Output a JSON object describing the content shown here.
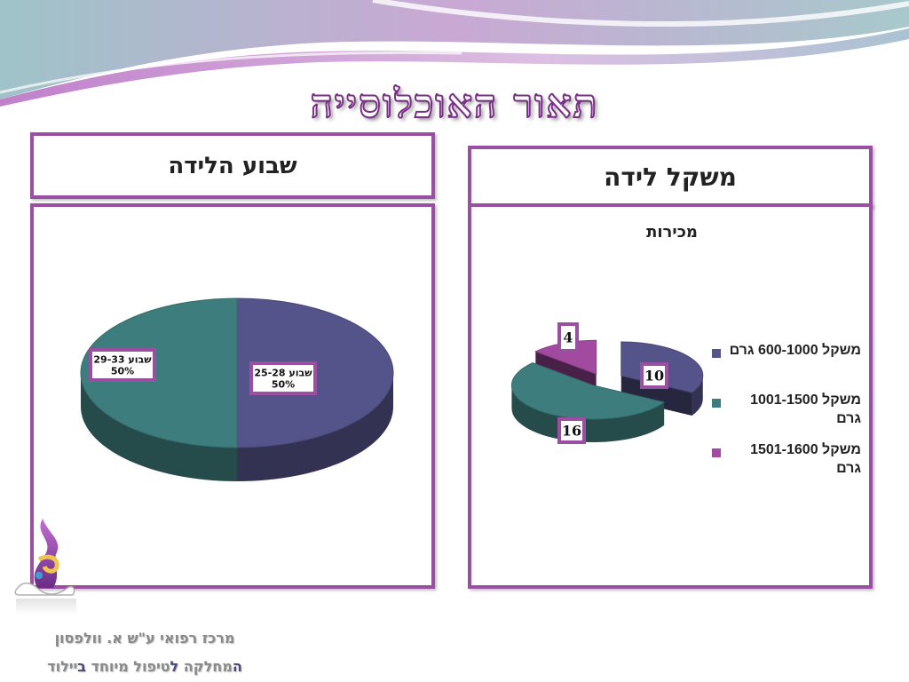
{
  "slide": {
    "title": "תאור האוכלוסייה",
    "colors": {
      "frame": "#9b4fa3",
      "teal": "#3e7d7d",
      "navy": "#55548a",
      "magenta": "#a24aa0"
    }
  },
  "left_panel": {
    "header": "שבוע הלידה"
  },
  "right_panel": {
    "header": "משקל לידה"
  },
  "chart_data": [
    {
      "type": "pie",
      "style": "3d",
      "title": "",
      "categories": [
        "שבוע 25-28",
        "שבוע 29-33"
      ],
      "values": [
        50,
        50
      ],
      "data_labels": [
        {
          "name": "שבוע 25-28",
          "value": "50%"
        },
        {
          "name": "שבוע 29-33",
          "value": "50%"
        }
      ],
      "colors": [
        "#55548a",
        "#3e7d7d"
      ],
      "legend": "none"
    },
    {
      "type": "pie",
      "style": "3d-exploded",
      "title": "מכירות",
      "categories": [
        "משקל 600-1000 גרם",
        "משקל 1001-1500 גרם",
        "משקל 1501-1600 גרם"
      ],
      "values": [
        10,
        16,
        4
      ],
      "colors": [
        "#55548a",
        "#3e7d7d",
        "#a24aa0"
      ],
      "legend": "right"
    }
  ],
  "footer": {
    "line1": "מרכז רפואי ע\"ש א. וולפסון",
    "line2": {
      "s1": "ה",
      "s2": "מחלקה ",
      "s3": "ל",
      "s4": "טיפול מיוחד ",
      "s5": "ב",
      "s6": "יילוד"
    }
  },
  "logo": {
    "icon": "department-logo-icon"
  }
}
